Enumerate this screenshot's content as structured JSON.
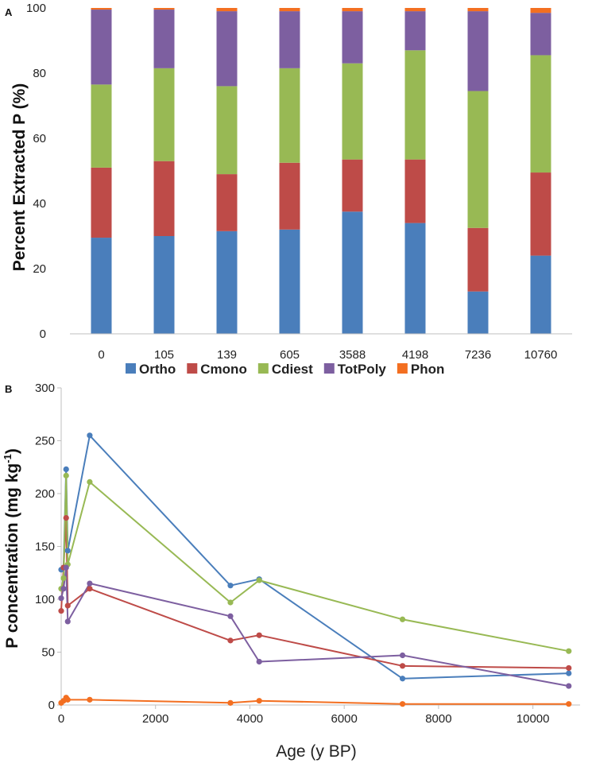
{
  "chart_data": [
    {
      "type": "bar",
      "stacked": true,
      "panel_label": "A",
      "title": "",
      "xlabel": "",
      "ylabel": "Percent Extracted P (%)",
      "ylim": [
        0,
        100
      ],
      "yticks": [
        0,
        20,
        40,
        60,
        80,
        100
      ],
      "categories": [
        "0",
        "105",
        "139",
        "605",
        "3588",
        "4198",
        "7236",
        "10760"
      ],
      "series": [
        {
          "name": "Ortho",
          "color": "#4a7ebb",
          "values": [
            29.5,
            30,
            31.5,
            32,
            37.5,
            34,
            13,
            24
          ]
        },
        {
          "name": "Cmono",
          "color": "#be4b48",
          "values": [
            21.5,
            23,
            17.5,
            20.5,
            16,
            19.5,
            19.5,
            25.5
          ]
        },
        {
          "name": "Cdiest",
          "color": "#98b954",
          "values": [
            25.5,
            28.5,
            27,
            29,
            29.5,
            33.5,
            42,
            36
          ]
        },
        {
          "name": "TotPoly",
          "color": "#7d5fa0",
          "values": [
            23,
            18,
            23,
            17.5,
            16,
            12,
            24.5,
            13
          ]
        },
        {
          "name": "Phon",
          "color": "#f36f21",
          "values": [
            0.5,
            0.5,
            1,
            1,
            1,
            1,
            1,
            1.5
          ]
        }
      ]
    },
    {
      "type": "line",
      "panel_label": "B",
      "title": "",
      "xlabel": "Age (y BP)",
      "ylabel_main": "P concentration (mg kg",
      "ylabel_sup": "-1",
      "ylabel_end": ")",
      "xlim": [
        0,
        11000
      ],
      "ylim": [
        0,
        300
      ],
      "xticks": [
        0,
        2000,
        4000,
        6000,
        8000,
        10000
      ],
      "yticks": [
        0,
        50,
        100,
        150,
        200,
        250,
        300
      ],
      "x": [
        0,
        105,
        139,
        605,
        3588,
        4198,
        7236,
        10760
      ],
      "series": [
        {
          "name": "Ortho",
          "color": "#4a7ebb",
          "x": [
            0,
            50,
            105,
            139,
            605,
            3588,
            4198,
            7236,
            10760
          ],
          "values": [
            128,
            130,
            223,
            146,
            255,
            113,
            119,
            25,
            30
          ]
        },
        {
          "name": "Cmono",
          "color": "#be4b48",
          "x": [
            0,
            50,
            105,
            139,
            605,
            3588,
            4198,
            7236,
            10760
          ],
          "values": [
            89,
            130,
            177,
            94,
            110,
            61,
            66,
            37,
            35
          ]
        },
        {
          "name": "Cdiest",
          "color": "#98b954",
          "x": [
            0,
            50,
            105,
            139,
            605,
            3588,
            4198,
            7236,
            10760
          ],
          "values": [
            110,
            120,
            217,
            133,
            211,
            97,
            118,
            81,
            51
          ]
        },
        {
          "name": "TotPoly",
          "color": "#7d5fa0",
          "x": [
            0,
            50,
            105,
            139,
            605,
            3588,
            4198,
            7236,
            10760
          ],
          "values": [
            101,
            110,
            130,
            79,
            115,
            84,
            41,
            47,
            18
          ]
        },
        {
          "name": "Phon",
          "color": "#f36f21",
          "x": [
            0,
            50,
            105,
            139,
            605,
            3588,
            4198,
            7236,
            10760
          ],
          "values": [
            2,
            4,
            7,
            5,
            5,
            2,
            4,
            1,
            1
          ]
        }
      ]
    }
  ]
}
